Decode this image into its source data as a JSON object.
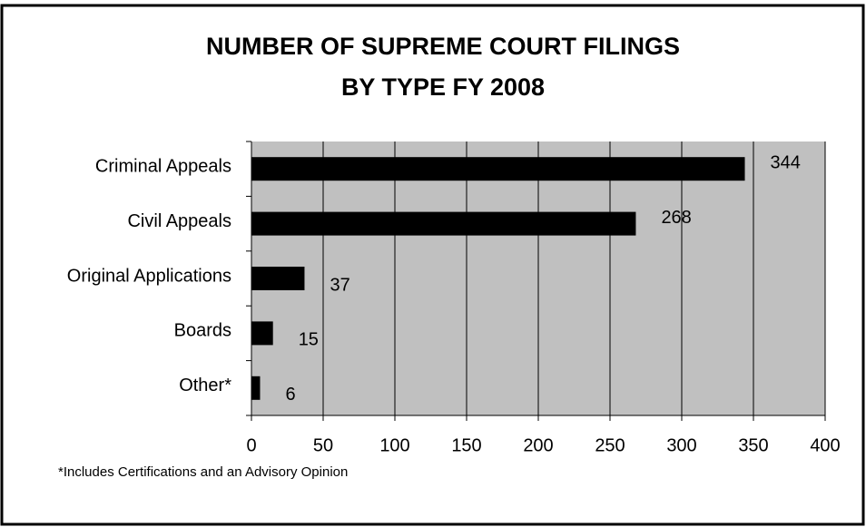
{
  "chart_data": {
    "type": "barh",
    "title": [
      "NUMBER OF SUPREME COURT FILINGS",
      "BY TYPE FY 2008"
    ],
    "categories": [
      "Criminal Appeals",
      "Civil Appeals",
      "Original Applications",
      "Boards",
      "Other*"
    ],
    "values": [
      344,
      268,
      37,
      15,
      6
    ],
    "color": "#000000",
    "plot_background": "#c0c0c0",
    "xlim": [
      0,
      400
    ],
    "xticks": [
      0,
      50,
      100,
      150,
      200,
      250,
      300,
      350,
      400
    ],
    "grid": true,
    "annotation": "*Includes Certifications and an Advisory Opinion"
  }
}
